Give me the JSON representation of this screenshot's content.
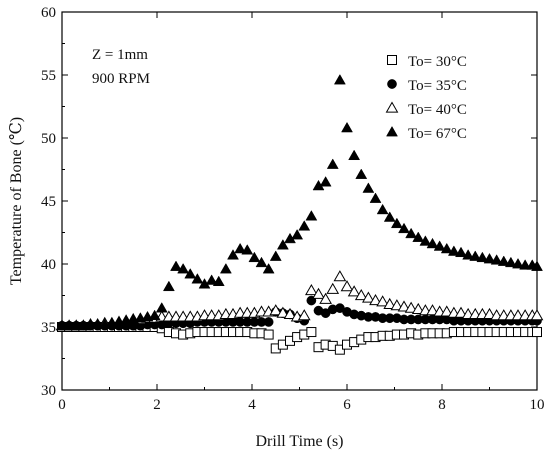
{
  "chart_data": {
    "type": "scatter",
    "title": "",
    "xlabel": "Drill Time (s)",
    "ylabel": "Temperature of Bone (℃)",
    "xlim": [
      0,
      10
    ],
    "ylim": [
      30,
      60
    ],
    "x_ticks": [
      0,
      2,
      4,
      6,
      8,
      10
    ],
    "y_ticks": [
      30,
      35,
      40,
      45,
      50,
      55,
      60
    ],
    "grid": false,
    "legend_position": "top-right",
    "annotations": [
      "Z = 1mm",
      "900 RPM"
    ],
    "series": [
      {
        "name": "To= 30°C",
        "marker": "open-square",
        "color": "#000000",
        "x": [
          0.0,
          0.15,
          0.3,
          0.45,
          0.6,
          0.75,
          0.9,
          1.05,
          1.2,
          1.35,
          1.5,
          1.65,
          1.8,
          1.95,
          2.1,
          2.25,
          2.4,
          2.55,
          2.7,
          2.85,
          3.0,
          3.15,
          3.3,
          3.45,
          3.6,
          3.75,
          3.9,
          4.05,
          4.2,
          4.35,
          4.5,
          4.65,
          4.8,
          4.95,
          5.1,
          5.25,
          5.4,
          5.55,
          5.7,
          5.85,
          6.0,
          6.15,
          6.3,
          6.45,
          6.6,
          6.75,
          6.9,
          7.05,
          7.2,
          7.35,
          7.5,
          7.65,
          7.8,
          7.95,
          8.1,
          8.25,
          8.4,
          8.55,
          8.7,
          8.85,
          9.0,
          9.15,
          9.3,
          9.45,
          9.6,
          9.75,
          9.9,
          10.0
        ],
        "y": [
          35.0,
          35.0,
          35.0,
          35.0,
          35.0,
          35.0,
          35.0,
          35.0,
          35.0,
          35.0,
          35.0,
          35.0,
          35.0,
          35.0,
          34.9,
          34.6,
          34.5,
          34.4,
          34.5,
          34.6,
          34.6,
          34.6,
          34.6,
          34.6,
          34.6,
          34.6,
          34.6,
          34.5,
          34.5,
          34.4,
          33.3,
          33.6,
          33.9,
          34.2,
          34.4,
          34.6,
          33.4,
          33.6,
          33.5,
          33.2,
          33.6,
          33.8,
          34.0,
          34.2,
          34.2,
          34.3,
          34.3,
          34.4,
          34.4,
          34.5,
          34.4,
          34.5,
          34.5,
          34.5,
          34.5,
          34.6,
          34.6,
          34.6,
          34.6,
          34.6,
          34.6,
          34.6,
          34.6,
          34.6,
          34.6,
          34.6,
          34.6,
          34.6
        ]
      },
      {
        "name": "To= 35°C",
        "marker": "filled-circle",
        "color": "#000000",
        "x": [
          0.0,
          0.15,
          0.3,
          0.45,
          0.6,
          0.75,
          0.9,
          1.05,
          1.2,
          1.35,
          1.5,
          1.65,
          1.8,
          1.95,
          2.1,
          2.25,
          2.4,
          2.55,
          2.7,
          2.85,
          3.0,
          3.15,
          3.3,
          3.45,
          3.6,
          3.75,
          3.9,
          4.05,
          4.2,
          4.35,
          4.5,
          4.65,
          4.8,
          4.95,
          5.1,
          5.25,
          5.4,
          5.55,
          5.7,
          5.85,
          6.0,
          6.15,
          6.3,
          6.45,
          6.6,
          6.75,
          6.9,
          7.05,
          7.2,
          7.35,
          7.5,
          7.65,
          7.8,
          7.95,
          8.1,
          8.25,
          8.4,
          8.55,
          8.7,
          8.85,
          9.0,
          9.15,
          9.3,
          9.45,
          9.6,
          9.75,
          9.9,
          10.0
        ],
        "y": [
          35.1,
          35.1,
          35.1,
          35.1,
          35.1,
          35.1,
          35.1,
          35.1,
          35.1,
          35.1,
          35.1,
          35.1,
          35.2,
          35.2,
          35.2,
          35.3,
          35.3,
          35.3,
          35.3,
          35.4,
          35.4,
          35.4,
          35.4,
          35.4,
          35.4,
          35.4,
          35.4,
          35.4,
          35.4,
          35.4,
          36.2,
          36.1,
          36.0,
          35.7,
          35.5,
          37.1,
          36.3,
          36.1,
          36.4,
          36.5,
          36.2,
          36.0,
          35.9,
          35.8,
          35.8,
          35.7,
          35.7,
          35.7,
          35.6,
          35.6,
          35.6,
          35.6,
          35.6,
          35.6,
          35.6,
          35.5,
          35.5,
          35.5,
          35.5,
          35.5,
          35.5,
          35.5,
          35.5,
          35.5,
          35.5,
          35.5,
          35.5,
          35.5
        ]
      },
      {
        "name": "To= 40°C",
        "marker": "open-triangle",
        "color": "#000000",
        "x": [
          0.0,
          0.15,
          0.3,
          0.45,
          0.6,
          0.75,
          0.9,
          1.05,
          1.2,
          1.35,
          1.5,
          1.65,
          1.8,
          1.95,
          2.1,
          2.25,
          2.4,
          2.55,
          2.7,
          2.85,
          3.0,
          3.15,
          3.3,
          3.45,
          3.6,
          3.75,
          3.9,
          4.05,
          4.2,
          4.35,
          4.5,
          4.65,
          4.8,
          4.95,
          5.1,
          5.25,
          5.4,
          5.55,
          5.7,
          5.85,
          6.0,
          6.15,
          6.3,
          6.45,
          6.6,
          6.75,
          6.9,
          7.05,
          7.2,
          7.35,
          7.5,
          7.65,
          7.8,
          7.95,
          8.1,
          8.25,
          8.4,
          8.55,
          8.7,
          8.85,
          9.0,
          9.15,
          9.3,
          9.45,
          9.6,
          9.75,
          9.9,
          10.0
        ],
        "y": [
          35.1,
          35.1,
          35.1,
          35.1,
          35.2,
          35.2,
          35.3,
          35.3,
          35.4,
          35.5,
          35.6,
          35.6,
          35.7,
          35.7,
          35.8,
          35.8,
          35.8,
          35.8,
          35.8,
          35.8,
          35.9,
          35.9,
          35.9,
          36.0,
          36.0,
          36.1,
          36.1,
          36.1,
          36.2,
          36.2,
          36.3,
          36.1,
          36.0,
          35.8,
          35.9,
          37.9,
          37.6,
          37.2,
          38.0,
          39.0,
          38.2,
          37.8,
          37.5,
          37.3,
          37.1,
          37.0,
          36.8,
          36.7,
          36.6,
          36.5,
          36.4,
          36.3,
          36.3,
          36.2,
          36.2,
          36.1,
          36.1,
          36.0,
          36.0,
          36.0,
          36.0,
          35.9,
          35.9,
          35.9,
          35.9,
          35.9,
          35.9,
          35.9
        ]
      },
      {
        "name": "To= 67°C",
        "marker": "filled-triangle",
        "color": "#000000",
        "x": [
          0.0,
          0.15,
          0.3,
          0.45,
          0.6,
          0.75,
          0.9,
          1.05,
          1.2,
          1.35,
          1.5,
          1.65,
          1.8,
          1.95,
          2.1,
          2.25,
          2.4,
          2.55,
          2.7,
          2.85,
          3.0,
          3.15,
          3.3,
          3.45,
          3.6,
          3.75,
          3.9,
          4.05,
          4.2,
          4.35,
          4.5,
          4.65,
          4.8,
          4.95,
          5.1,
          5.25,
          5.4,
          5.55,
          5.7,
          5.85,
          6.0,
          6.15,
          6.3,
          6.45,
          6.6,
          6.75,
          6.9,
          7.05,
          7.2,
          7.35,
          7.5,
          7.65,
          7.8,
          7.95,
          8.1,
          8.25,
          8.4,
          8.55,
          8.7,
          8.85,
          9.0,
          9.15,
          9.3,
          9.45,
          9.6,
          9.75,
          9.9,
          10.0
        ],
        "y": [
          35.1,
          35.1,
          35.1,
          35.1,
          35.2,
          35.2,
          35.2,
          35.3,
          35.4,
          35.5,
          35.6,
          35.7,
          35.8,
          35.9,
          36.5,
          38.2,
          39.8,
          39.6,
          39.2,
          38.8,
          38.4,
          38.7,
          38.6,
          39.6,
          40.7,
          41.2,
          41.1,
          40.5,
          40.1,
          39.6,
          40.6,
          41.5,
          42.0,
          42.3,
          43.0,
          43.8,
          46.2,
          46.5,
          47.9,
          54.6,
          50.8,
          48.6,
          47.1,
          46.0,
          45.2,
          44.3,
          43.7,
          43.2,
          42.8,
          42.4,
          42.1,
          41.8,
          41.6,
          41.4,
          41.2,
          41.0,
          40.9,
          40.7,
          40.6,
          40.5,
          40.4,
          40.3,
          40.2,
          40.1,
          40.0,
          39.9,
          39.9,
          39.8
        ]
      }
    ]
  }
}
